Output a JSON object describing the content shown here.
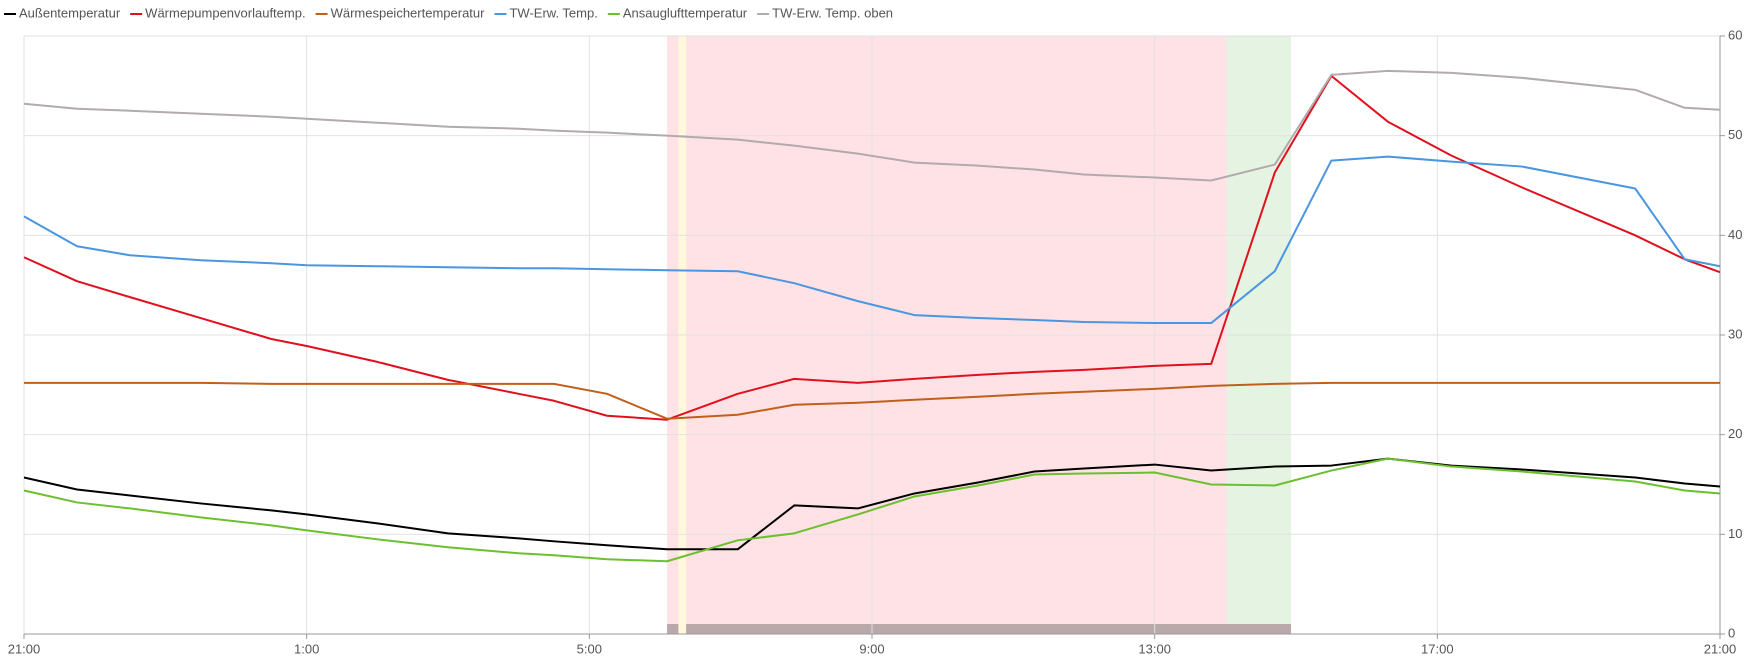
{
  "chart_data": {
    "type": "line",
    "x": [
      0,
      0.75,
      1.5,
      2.5,
      3.5,
      4.0,
      5.0,
      6.0,
      7.0,
      7.5,
      8.25,
      9.1,
      10.1,
      10.9,
      11.8,
      12.6,
      13.5,
      14.3,
      15.0,
      16.0,
      16.8,
      17.7,
      18.5,
      19.3,
      20.2,
      21.2,
      22.8,
      23.5,
      24
    ],
    "xlim": [
      0,
      24
    ],
    "xticks": [
      {
        "value": 0,
        "label": "21:00"
      },
      {
        "value": 4,
        "label": "1:00"
      },
      {
        "value": 8,
        "label": "5:00"
      },
      {
        "value": 12,
        "label": "9:00"
      },
      {
        "value": 16,
        "label": "13:00"
      },
      {
        "value": 20,
        "label": "17:00"
      },
      {
        "value": 24,
        "label": "21:00"
      }
    ],
    "ylim": [
      0,
      60
    ],
    "yticks": [
      0,
      10,
      20,
      30,
      40,
      50,
      60
    ],
    "grid": true,
    "legend": "top-left",
    "highlight_bands": [
      {
        "start": 9.1,
        "end": 17.02,
        "color": "#ffe2e5"
      },
      {
        "start": 9.26,
        "end": 9.37,
        "color": "#fff8dc"
      },
      {
        "start": 17.02,
        "end": 17.93,
        "color": "#e5f3e2"
      }
    ],
    "status_bars": [
      {
        "start": 9.1,
        "end": 9.26,
        "color": "#b9a9aa"
      },
      {
        "start": 9.37,
        "end": 17.93,
        "color": "#b9a9aa"
      }
    ],
    "series": [
      {
        "name": "Außentemperatur",
        "color": "#000000",
        "values": [
          15.7,
          14.5,
          13.9,
          13.1,
          12.4,
          12.0,
          11.1,
          10.1,
          9.6,
          9.3,
          8.9,
          8.5,
          8.5,
          12.9,
          12.6,
          14.1,
          15.2,
          16.3,
          16.6,
          17.0,
          16.4,
          16.8,
          16.9,
          17.6,
          16.9,
          16.5,
          15.7,
          15.1,
          14.8
        ]
      },
      {
        "name": "Wärmepumpenvorlauftemp.",
        "color": "#e0101e",
        "values": [
          37.8,
          35.4,
          33.8,
          31.7,
          29.6,
          28.9,
          27.3,
          25.5,
          24.1,
          23.4,
          21.9,
          21.5,
          24.1,
          25.6,
          25.2,
          25.6,
          26.0,
          26.3,
          26.5,
          26.9,
          27.1,
          46.3,
          56.0,
          51.4,
          48.0,
          44.8,
          40.0,
          37.6,
          36.3
        ]
      },
      {
        "name": "Wärmespeichertemperatur",
        "color": "#c0601a",
        "values": [
          25.2,
          25.2,
          25.2,
          25.2,
          25.1,
          25.1,
          25.1,
          25.1,
          25.1,
          25.1,
          24.1,
          21.6,
          22.0,
          23.0,
          23.2,
          23.5,
          23.8,
          24.1,
          24.3,
          24.6,
          24.9,
          25.1,
          25.2,
          25.2,
          25.2,
          25.2,
          25.2,
          25.2,
          25.2
        ]
      },
      {
        "name": "TW-Erw. Temp.",
        "color": "#4a96e0",
        "values": [
          41.9,
          38.9,
          38.0,
          37.5,
          37.2,
          37.0,
          36.9,
          36.8,
          36.7,
          36.7,
          36.6,
          36.5,
          36.4,
          35.2,
          33.4,
          32.0,
          31.7,
          31.5,
          31.3,
          31.2,
          31.2,
          36.4,
          47.5,
          47.9,
          47.4,
          46.9,
          44.7,
          37.6,
          36.9
        ]
      },
      {
        "name": "Ansauglufttemperatur",
        "color": "#6cbf2e",
        "values": [
          14.4,
          13.2,
          12.6,
          11.7,
          10.9,
          10.4,
          9.5,
          8.7,
          8.1,
          7.9,
          7.5,
          7.3,
          9.4,
          10.1,
          12.0,
          13.8,
          14.9,
          16.0,
          16.1,
          16.2,
          15.0,
          14.9,
          16.4,
          17.6,
          16.8,
          16.3,
          15.3,
          14.4,
          14.1
        ]
      },
      {
        "name": "TW-Erw. Temp. oben",
        "color": "#b3aaad",
        "values": [
          53.2,
          52.7,
          52.5,
          52.2,
          51.9,
          51.7,
          51.3,
          50.9,
          50.7,
          50.5,
          50.3,
          50.0,
          49.6,
          49.0,
          48.2,
          47.3,
          47.0,
          46.6,
          46.1,
          45.8,
          45.5,
          47.1,
          56.1,
          56.5,
          56.3,
          55.8,
          54.6,
          52.8,
          52.6
        ]
      }
    ]
  }
}
